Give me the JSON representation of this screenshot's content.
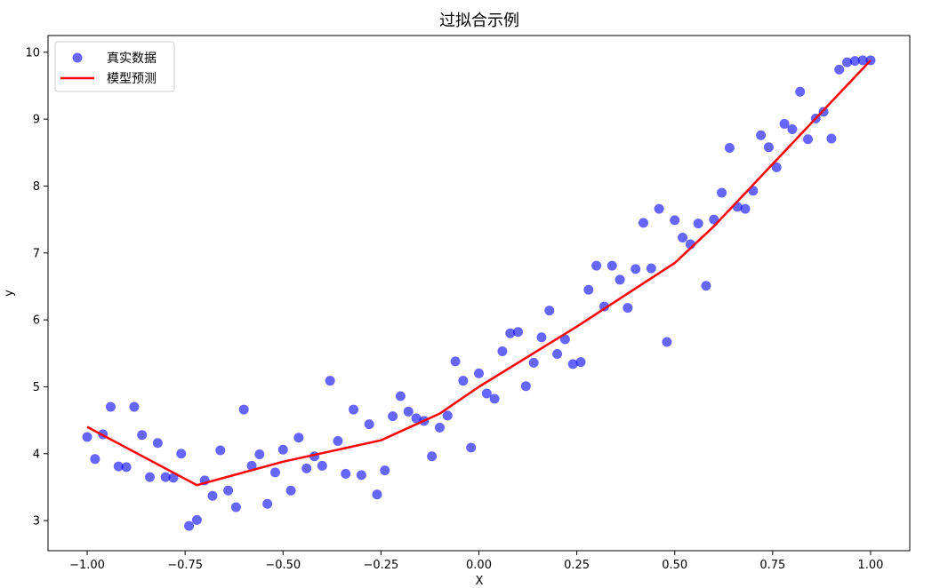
{
  "chart_data": {
    "type": "scatter",
    "title": "过拟合示例",
    "xlabel": "X",
    "ylabel": "y",
    "xlim": [
      -1.1,
      1.1
    ],
    "ylim": [
      2.55,
      10.25
    ],
    "grid": false,
    "legend_position": "top-left",
    "xticks": [
      -1.0,
      -0.75,
      -0.5,
      -0.25,
      0.0,
      0.25,
      0.5,
      0.75,
      1.0
    ],
    "xtick_labels": [
      "−1.00",
      "−0.75",
      "−0.50",
      "−0.25",
      "0.00",
      "0.25",
      "0.50",
      "0.75",
      "1.00"
    ],
    "yticks": [
      3,
      4,
      5,
      6,
      7,
      8,
      9,
      10
    ],
    "ytick_labels": [
      "3",
      "4",
      "5",
      "6",
      "7",
      "8",
      "9",
      "10"
    ],
    "series": [
      {
        "name": "真实数据",
        "kind": "scatter",
        "color": "#0000ff",
        "opacity": 0.6,
        "points": [
          [
            -1.0,
            4.25
          ],
          [
            -0.98,
            3.92
          ],
          [
            -0.96,
            4.29
          ],
          [
            -0.94,
            4.7
          ],
          [
            -0.92,
            3.81
          ],
          [
            -0.9,
            3.8
          ],
          [
            -0.88,
            4.7
          ],
          [
            -0.86,
            4.28
          ],
          [
            -0.84,
            3.65
          ],
          [
            -0.82,
            4.16
          ],
          [
            -0.8,
            3.65
          ],
          [
            -0.78,
            3.64
          ],
          [
            -0.76,
            4.0
          ],
          [
            -0.74,
            2.92
          ],
          [
            -0.72,
            3.01
          ],
          [
            -0.7,
            3.6
          ],
          [
            -0.68,
            3.37
          ],
          [
            -0.66,
            4.05
          ],
          [
            -0.64,
            3.45
          ],
          [
            -0.62,
            3.2
          ],
          [
            -0.6,
            4.66
          ],
          [
            -0.58,
            3.82
          ],
          [
            -0.56,
            3.99
          ],
          [
            -0.54,
            3.25
          ],
          [
            -0.52,
            3.72
          ],
          [
            -0.5,
            4.06
          ],
          [
            -0.48,
            3.45
          ],
          [
            -0.46,
            4.24
          ],
          [
            -0.44,
            3.78
          ],
          [
            -0.42,
            3.96
          ],
          [
            -0.4,
            3.82
          ],
          [
            -0.38,
            5.09
          ],
          [
            -0.36,
            4.19
          ],
          [
            -0.34,
            3.7
          ],
          [
            -0.32,
            4.66
          ],
          [
            -0.3,
            3.68
          ],
          [
            -0.28,
            4.44
          ],
          [
            -0.26,
            3.39
          ],
          [
            -0.24,
            3.75
          ],
          [
            -0.22,
            4.56
          ],
          [
            -0.2,
            4.86
          ],
          [
            -0.18,
            4.63
          ],
          [
            -0.16,
            4.53
          ],
          [
            -0.14,
            4.49
          ],
          [
            -0.12,
            3.96
          ],
          [
            -0.1,
            4.39
          ],
          [
            -0.08,
            4.57
          ],
          [
            -0.06,
            5.38
          ],
          [
            -0.04,
            5.09
          ],
          [
            -0.02,
            4.09
          ],
          [
            0.0,
            5.2
          ],
          [
            0.02,
            4.9
          ],
          [
            0.04,
            4.82
          ],
          [
            0.06,
            5.53
          ],
          [
            0.08,
            5.8
          ],
          [
            0.1,
            5.82
          ],
          [
            0.12,
            5.01
          ],
          [
            0.14,
            5.36
          ],
          [
            0.16,
            5.74
          ],
          [
            0.18,
            6.14
          ],
          [
            0.2,
            5.49
          ],
          [
            0.22,
            5.71
          ],
          [
            0.24,
            5.34
          ],
          [
            0.26,
            5.37
          ],
          [
            0.28,
            6.45
          ],
          [
            0.3,
            6.81
          ],
          [
            0.32,
            6.2
          ],
          [
            0.34,
            6.81
          ],
          [
            0.36,
            6.6
          ],
          [
            0.38,
            6.18
          ],
          [
            0.4,
            6.76
          ],
          [
            0.42,
            7.45
          ],
          [
            0.44,
            6.77
          ],
          [
            0.46,
            7.66
          ],
          [
            0.48,
            5.67
          ],
          [
            0.5,
            7.49
          ],
          [
            0.52,
            7.23
          ],
          [
            0.54,
            7.13
          ],
          [
            0.56,
            7.44
          ],
          [
            0.58,
            6.51
          ],
          [
            0.6,
            7.5
          ],
          [
            0.62,
            7.9
          ],
          [
            0.64,
            8.57
          ],
          [
            0.66,
            7.69
          ],
          [
            0.68,
            7.66
          ],
          [
            0.7,
            7.93
          ],
          [
            0.72,
            8.76
          ],
          [
            0.74,
            8.58
          ],
          [
            0.76,
            8.28
          ],
          [
            0.78,
            8.93
          ],
          [
            0.8,
            8.85
          ],
          [
            0.82,
            9.41
          ],
          [
            0.84,
            8.7
          ],
          [
            0.86,
            9.01
          ],
          [
            0.88,
            9.11
          ],
          [
            0.9,
            8.71
          ],
          [
            0.92,
            9.74
          ],
          [
            0.94,
            9.85
          ],
          [
            0.96,
            9.87
          ],
          [
            0.98,
            9.88
          ],
          [
            1.0,
            9.88
          ]
        ]
      },
      {
        "name": "模型预测",
        "kind": "line",
        "color": "#ff0000",
        "points": [
          [
            -1.0,
            4.4
          ],
          [
            -0.72,
            3.53
          ],
          [
            -0.5,
            3.88
          ],
          [
            -0.25,
            4.2
          ],
          [
            -0.1,
            4.6
          ],
          [
            0.0,
            5.0
          ],
          [
            0.25,
            5.9
          ],
          [
            0.5,
            6.85
          ],
          [
            0.6,
            7.4
          ],
          [
            1.0,
            9.88
          ]
        ]
      }
    ]
  }
}
